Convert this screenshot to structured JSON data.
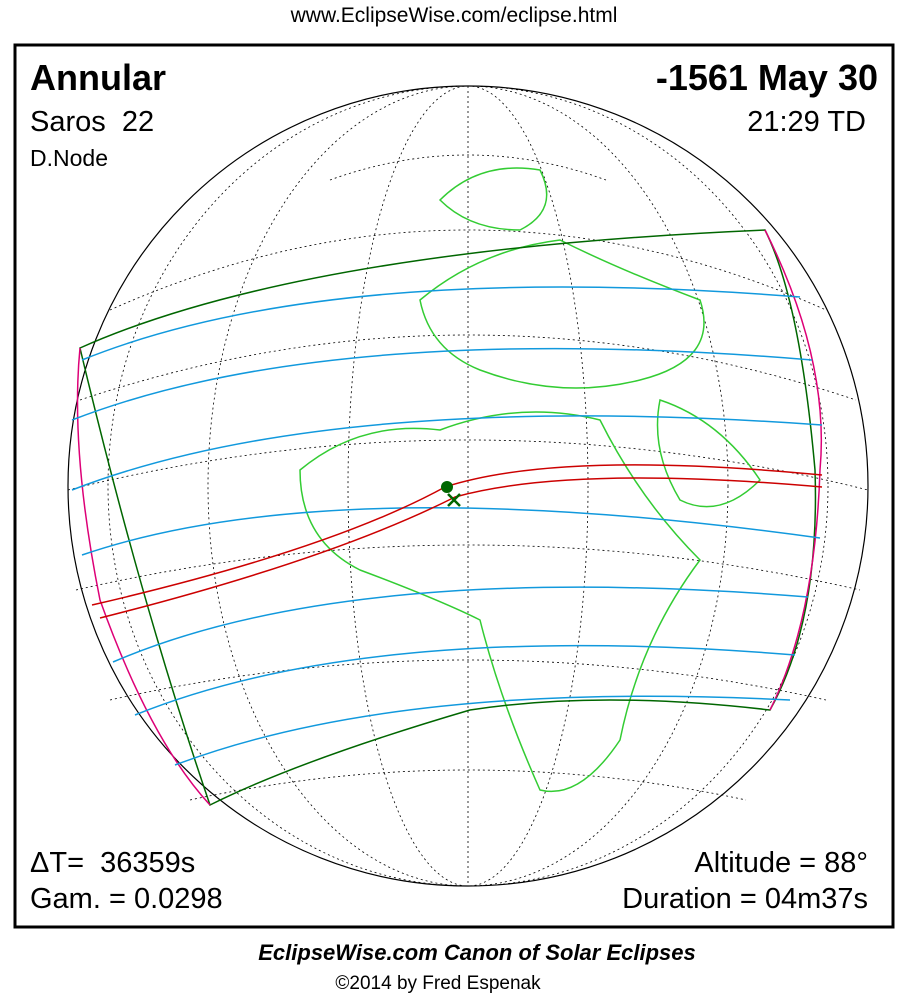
{
  "header": {
    "url": "www.EclipseWise.com/eclipse.html"
  },
  "eclipse": {
    "type": "Annular",
    "saros": "Saros  22",
    "node": "D.Node",
    "date": "-1561 May 30",
    "time": "21:29 TD",
    "delta_t": "ΔT=  36359s",
    "gamma": "Gam. = 0.0298",
    "altitude": "Altitude = 88°",
    "duration": "Duration = 04m37s"
  },
  "footer": {
    "title": "EclipseWise.com Canon of Solar Eclipses",
    "credit": "©2014 by Fred Espenak"
  }
}
